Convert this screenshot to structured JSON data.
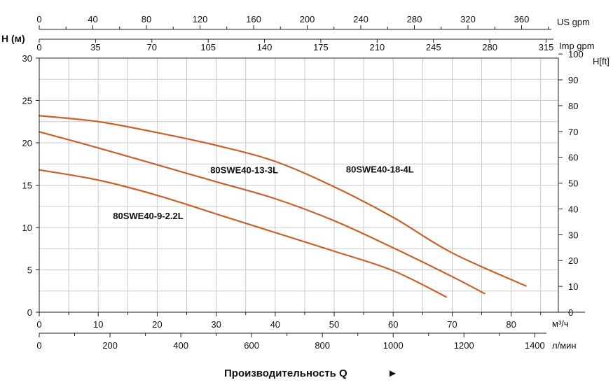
{
  "chart_data": {
    "type": "line",
    "y_axis_label": "H (м)",
    "right_axis_unit": "H[ft]",
    "x_unit": "м³/ч",
    "footer": "Производительность Q",
    "footer_arrow": "►",
    "xlim": [
      0,
      88
    ],
    "ylim": [
      0,
      30
    ],
    "x_ticks": [
      0,
      10,
      20,
      30,
      40,
      50,
      60,
      70,
      80
    ],
    "y_ticks": [
      0,
      5,
      10,
      15,
      20,
      25,
      30
    ],
    "right_ticks": [
      0,
      10,
      20,
      30,
      40,
      50,
      60,
      70,
      80,
      90,
      100
    ],
    "top_axis_us": {
      "unit": "US gpm",
      "ticks": [
        0,
        40,
        80,
        120,
        160,
        200,
        240,
        280,
        320,
        360
      ]
    },
    "top_axis_imp": {
      "unit": "Imp gpm",
      "ticks": [
        0,
        35,
        70,
        105,
        140,
        175,
        210,
        245,
        280,
        315
      ]
    },
    "bottom_axis_lmin": {
      "unit": "л/мин",
      "ticks": [
        0,
        200,
        400,
        600,
        800,
        1000,
        1200,
        1400
      ]
    },
    "grid": true,
    "line_color": "#c8612a",
    "series": [
      {
        "name": "80SWE40-18-4L",
        "label_at": [
          52,
          16.5
        ],
        "x": [
          0,
          10,
          20,
          30,
          40,
          50,
          60,
          70,
          82.5
        ],
        "y": [
          23.2,
          22.5,
          21.2,
          19.7,
          17.8,
          14.8,
          11.2,
          7.0,
          3.1
        ]
      },
      {
        "name": "80SWE40-13-3L",
        "label_at": [
          29,
          16.4
        ],
        "x": [
          0,
          10,
          20,
          30,
          40,
          50,
          60,
          70,
          75.5
        ],
        "y": [
          21.3,
          19.4,
          17.4,
          15.4,
          13.4,
          10.8,
          7.6,
          4.2,
          2.2
        ]
      },
      {
        "name": "80SWE40-9-2.2L",
        "label_at": [
          12.5,
          11.0
        ],
        "x": [
          0,
          10,
          20,
          30,
          40,
          50,
          60,
          69
        ],
        "y": [
          16.8,
          15.6,
          13.8,
          11.6,
          9.4,
          7.2,
          4.9,
          1.8
        ]
      }
    ]
  }
}
